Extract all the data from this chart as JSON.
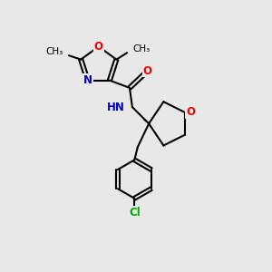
{
  "background_color": "#e8e8e8",
  "bond_color": "#000000",
  "bond_width": 1.5,
  "atom_colors": {
    "O": "#ff0000",
    "N": "#0000cc",
    "Cl": "#00aa00",
    "C": "#000000"
  },
  "figsize": [
    3.0,
    3.0
  ],
  "dpi": 100,
  "xlim": [
    0,
    10
  ],
  "ylim": [
    0,
    10
  ]
}
